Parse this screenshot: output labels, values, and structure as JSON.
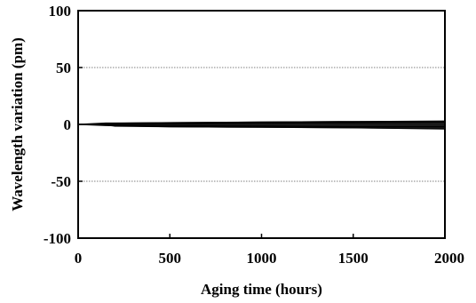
{
  "chart_data": {
    "type": "area",
    "title": "",
    "xlabel": "Aging time (hours)",
    "ylabel": "Wavelength variation (pm)",
    "xlim": [
      0,
      2000
    ],
    "ylim": [
      -100,
      100
    ],
    "xticks": [
      0,
      500,
      1000,
      1500,
      2000
    ],
    "yticks": [
      -100,
      -50,
      0,
      50,
      100
    ],
    "grid": {
      "horizontal": true,
      "style": "dotted",
      "at": [
        -50,
        0,
        50
      ]
    },
    "legend": "none",
    "series_color": "#1a1a1a",
    "band": {
      "x": [
        0,
        150,
        200,
        500,
        1000,
        1500,
        2000
      ],
      "upper": [
        0,
        1.5,
        1.5,
        2,
        2.5,
        3,
        3
      ],
      "lower": [
        0,
        -1,
        -2,
        -2.5,
        -3,
        -3.5,
        -4
      ]
    },
    "series": [
      {
        "x": [
          0,
          150,
          500,
          1000,
          1500,
          2000
        ],
        "values": [
          0,
          1.2,
          1.5,
          2,
          2.5,
          3
        ]
      },
      {
        "x": [
          0,
          150,
          500,
          1000,
          1500,
          2000
        ],
        "values": [
          0,
          0.5,
          0.5,
          1,
          1.5,
          2
        ]
      },
      {
        "x": [
          0,
          150,
          500,
          1000,
          1500,
          2000
        ],
        "values": [
          0,
          -0.5,
          -1,
          -1.5,
          -2,
          -2
        ]
      },
      {
        "x": [
          0,
          150,
          500,
          1000,
          1500,
          2000
        ],
        "values": [
          0,
          -1,
          -2,
          -2.5,
          -3,
          -4
        ]
      }
    ]
  }
}
